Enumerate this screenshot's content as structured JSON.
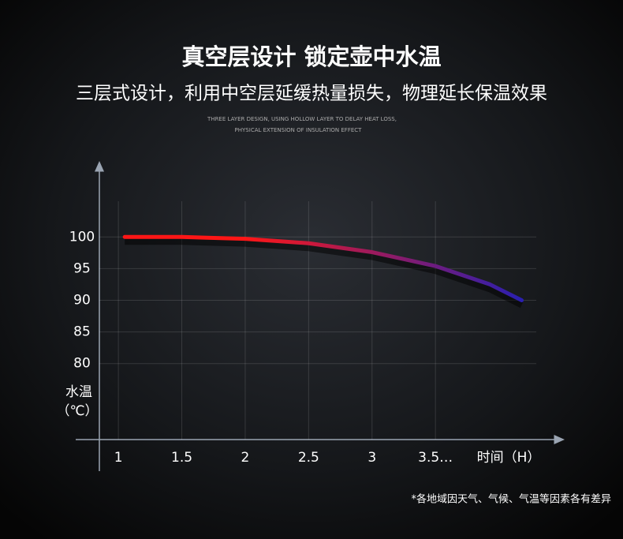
{
  "chart_data": {
    "type": "line",
    "title": "真空层设计  锁定壶中水温",
    "subtitle": "三层式设计，利用中空层延缓热量损失，物理延长保温效果",
    "english": [
      "THREE LAYER DESIGN, USING HOLLOW LAYER TO DELAY HEAT LOSS,",
      "PHYSICAL EXTENSION OF INSULATION EFFECT"
    ],
    "x_label": "时间（H）",
    "y_label": [
      "水温",
      "（℃）"
    ],
    "note": "*各地域因天气、气候、气温等因素各有差异",
    "x": [
      1.05,
      1.5,
      2,
      2.5,
      3,
      3.5,
      3.93,
      4.18
    ],
    "values": [
      100,
      100,
      99.7,
      99,
      97.6,
      95.4,
      92.5,
      90
    ],
    "gradient": [
      "#ff1616",
      "#2a1fb0"
    ],
    "xlim": [
      0.85,
      4.5
    ],
    "ylim": [
      68,
      111
    ],
    "xticks": [
      1,
      1.5,
      2,
      2.5,
      3,
      {
        "value": 3.5,
        "label": "3.5…"
      }
    ],
    "yticks": [
      100,
      95,
      90,
      85,
      80
    ],
    "grid": true
  }
}
